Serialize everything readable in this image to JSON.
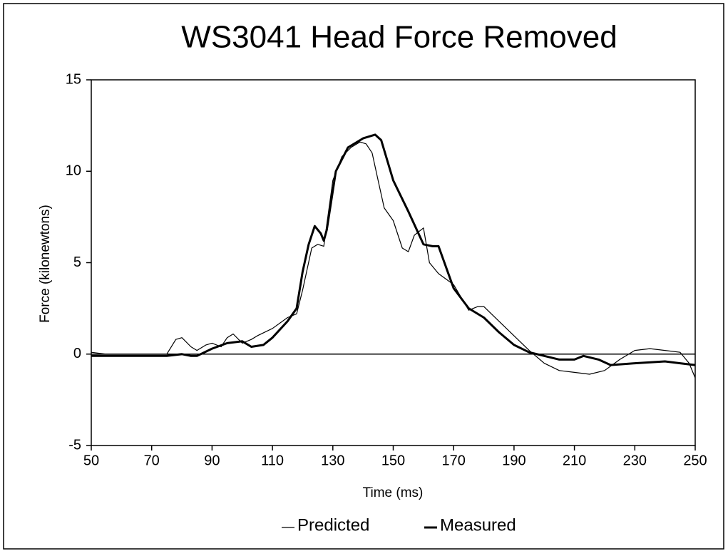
{
  "chart_data": {
    "type": "line",
    "title": "WS3041 Head Force Removed",
    "x_label": "Time (ms)",
    "y_label": "Force (kilonewtons)",
    "xlim": [
      50,
      250
    ],
    "xticks": [
      50,
      70,
      90,
      110,
      130,
      150,
      170,
      190,
      210,
      230,
      250
    ],
    "ylim": [
      -5,
      15
    ],
    "yticks": [
      -5,
      0,
      5,
      10,
      15
    ],
    "series": [
      {
        "name": "Predicted",
        "color": "#000000",
        "width": 1.2,
        "x": [
          50,
          55,
          60,
          65,
          70,
          75,
          78,
          80,
          83,
          85,
          88,
          90,
          93,
          95,
          97,
          100,
          103,
          105,
          110,
          115,
          118,
          120,
          123,
          125,
          127,
          130,
          133,
          136,
          139,
          141,
          143,
          145,
          147,
          150,
          153,
          155,
          157,
          160,
          162,
          165,
          170,
          175,
          178,
          180,
          185,
          190,
          195,
          200,
          205,
          210,
          215,
          220,
          225,
          230,
          235,
          240,
          245,
          248,
          250
        ],
        "values": [
          0.1,
          0,
          0,
          0,
          0,
          0,
          0.8,
          0.9,
          0.4,
          0.2,
          0.5,
          0.6,
          0.4,
          0.9,
          1.1,
          0.6,
          0.8,
          1.0,
          1.4,
          2.0,
          2.2,
          3.5,
          5.8,
          6.0,
          5.9,
          9.5,
          10.8,
          11.3,
          11.6,
          11.5,
          11.0,
          9.5,
          8.0,
          7.3,
          5.8,
          5.6,
          6.5,
          6.9,
          5.0,
          4.4,
          3.8,
          2.4,
          2.6,
          2.6,
          1.8,
          1.0,
          0.2,
          -0.5,
          -0.9,
          -1.0,
          -1.1,
          -0.9,
          -0.3,
          0.2,
          0.3,
          0.2,
          0.1,
          -0.5,
          -1.3
        ]
      },
      {
        "name": "Measured",
        "color": "#000000",
        "width": 3,
        "x": [
          50,
          55,
          60,
          65,
          70,
          75,
          80,
          83,
          85,
          90,
          95,
          100,
          103,
          107,
          110,
          115,
          118,
          120,
          122,
          124,
          126,
          127,
          128,
          131,
          135,
          140,
          144,
          146,
          150,
          155,
          160,
          163,
          165,
          170,
          175,
          180,
          185,
          190,
          195,
          200,
          205,
          210,
          213,
          218,
          222,
          230,
          240,
          245,
          250
        ],
        "values": [
          -0.1,
          -0.1,
          -0.1,
          -0.1,
          -0.1,
          -0.1,
          0,
          -0.1,
          -0.1,
          0.3,
          0.6,
          0.7,
          0.4,
          0.5,
          0.9,
          1.8,
          2.5,
          4.5,
          6.0,
          7.0,
          6.6,
          6.2,
          6.8,
          10.0,
          11.3,
          11.8,
          12.0,
          11.7,
          9.5,
          7.8,
          6.0,
          5.9,
          5.9,
          3.6,
          2.5,
          2.0,
          1.2,
          0.5,
          0.1,
          -0.1,
          -0.3,
          -0.3,
          -0.1,
          -0.3,
          -0.6,
          -0.5,
          -0.4,
          -0.5,
          -0.6
        ]
      }
    ]
  }
}
